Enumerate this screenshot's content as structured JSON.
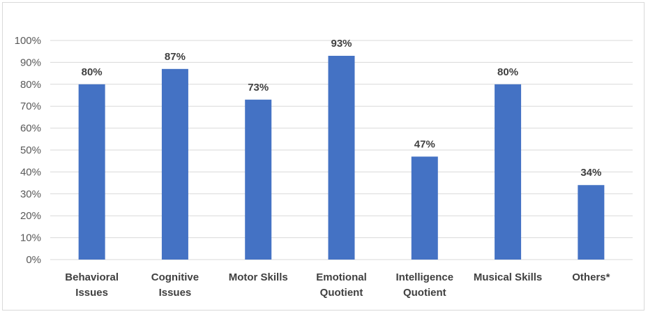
{
  "chart_data": {
    "type": "bar",
    "categories": [
      [
        "Behavioral",
        "Issues"
      ],
      [
        "Cognitive",
        "Issues"
      ],
      [
        "Motor Skills"
      ],
      [
        "Emotional",
        "Quotient"
      ],
      [
        "Intelligence",
        "Quotient"
      ],
      [
        "Musical Skills"
      ],
      [
        "Others*"
      ]
    ],
    "values": [
      80,
      87,
      73,
      93,
      47,
      80,
      34
    ],
    "data_labels": [
      "80%",
      "87%",
      "73%",
      "93%",
      "47%",
      "80%",
      "34%"
    ],
    "y_ticks": [
      "0%",
      "10%",
      "20%",
      "30%",
      "40%",
      "50%",
      "60%",
      "70%",
      "80%",
      "90%",
      "100%"
    ],
    "ylim": [
      0,
      100
    ],
    "grid": true,
    "legend": "none",
    "bar_color": "#4472C4",
    "grid_color": "#D9D9D9"
  }
}
